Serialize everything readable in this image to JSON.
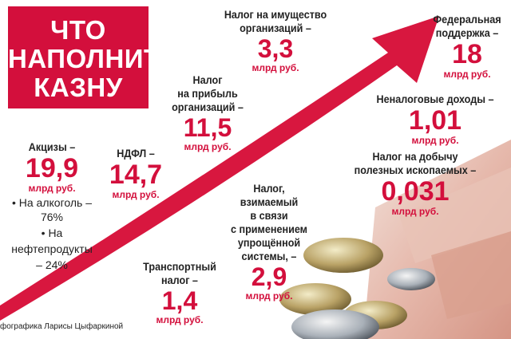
{
  "title_lines": [
    "ЧТО",
    "НАПОЛНИТ",
    "КАЗНУ"
  ],
  "items": [
    {
      "label": [
        "Налог на имущество",
        "организаций –"
      ],
      "value": "3,3",
      "unit": "млрд руб."
    },
    {
      "label": [
        "Федеральная",
        "поддержка –"
      ],
      "value": "18",
      "unit": "млрд руб."
    },
    {
      "label": [
        "Налог",
        "на прибыль",
        "организаций –"
      ],
      "value": "11,5",
      "unit": "млрд руб."
    },
    {
      "label": [
        "Неналоговые доходы –"
      ],
      "value": "1,01",
      "unit": "млрд руб."
    },
    {
      "label": [
        "Акцизы –"
      ],
      "value": "19,9",
      "unit": "млрд руб.",
      "notes": [
        "• На алкоголь – 76%",
        "• На",
        "нефтепродукты",
        "– 24%"
      ]
    },
    {
      "label": [
        "НДФЛ –"
      ],
      "value": "14,7",
      "unit": "млрд руб."
    },
    {
      "label": [
        "Налог на добычу",
        "полезных ископаемых –"
      ],
      "value": "0,031",
      "unit": "млрд руб."
    },
    {
      "label": [
        "Налог,",
        "взимаемый",
        "в связи",
        "с применением",
        "упрощённой",
        "системы, –"
      ],
      "value": "2,9",
      "unit": "млрд руб."
    },
    {
      "label": [
        "Транспортный",
        "налог –"
      ],
      "value": "1,4",
      "unit": "млрд руб."
    }
  ],
  "credit": "фографика Ларисы Цыфаркиной"
}
